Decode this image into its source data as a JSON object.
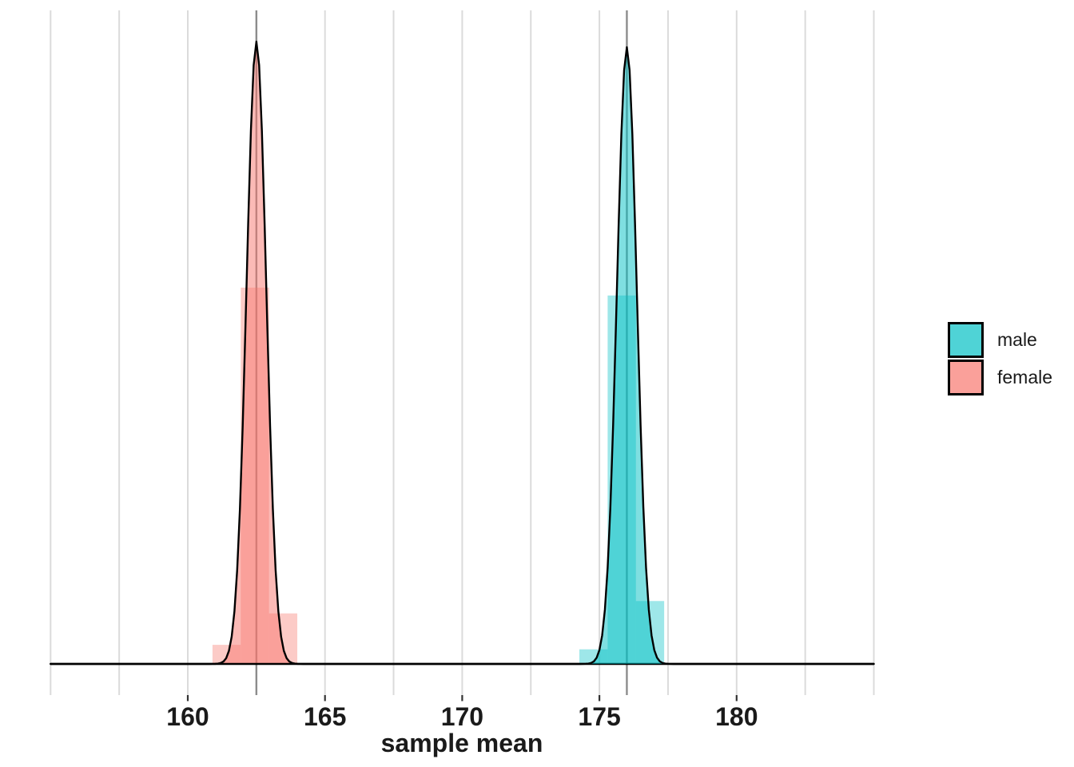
{
  "chart_data": {
    "type": "area",
    "subtype": "density-curves-with-histograms",
    "title": "",
    "xlabel": "sample mean",
    "ylabel": "",
    "xlim": [
      153.5,
      186.5
    ],
    "ylim": [
      -0.056,
      1.163
    ],
    "grid": "vertical-only",
    "legend_position": "right",
    "x_ticks": [
      {
        "value": 160,
        "label": "160"
      },
      {
        "value": 165,
        "label": "165"
      },
      {
        "value": 170,
        "label": "170"
      },
      {
        "value": 175,
        "label": "175"
      },
      {
        "value": 180,
        "label": "180"
      }
    ],
    "x_gridlines": [
      155,
      157.5,
      160,
      162.5,
      165,
      167.5,
      170,
      172.5,
      175,
      177.5,
      180,
      182.5,
      185
    ],
    "series": [
      {
        "name": "female",
        "fill": "#F8766D",
        "mean": 162.5,
        "sd": 0.36,
        "peak_density": 1.108,
        "mean_line": 162.5,
        "curve_range": [
          155,
          185
        ],
        "histogram_bins": [
          {
            "x0": 160.9,
            "x1": 161.93,
            "density": 0.034
          },
          {
            "x0": 161.93,
            "x1": 162.96,
            "density": 0.67
          },
          {
            "x0": 162.96,
            "x1": 163.99,
            "density": 0.09
          }
        ]
      },
      {
        "name": "male",
        "fill": "#00BFC4",
        "mean": 176.0,
        "sd": 0.363,
        "peak_density": 1.098,
        "mean_line": 176.0,
        "curve_range": [
          155,
          185
        ],
        "histogram_bins": [
          {
            "x0": 174.27,
            "x1": 175.3,
            "density": 0.026
          },
          {
            "x0": 175.3,
            "x1": 176.33,
            "density": 0.656
          },
          {
            "x0": 176.33,
            "x1": 177.36,
            "density": 0.112
          }
        ]
      }
    ]
  },
  "legend": {
    "items": [
      {
        "label": "male",
        "color": "#00BFC4"
      },
      {
        "label": "female",
        "color": "#F8766D"
      }
    ]
  },
  "style": {
    "background": "#FFFFFF",
    "gridline_color": "#DBDBDB",
    "mean_line_color": "#8C8C8C",
    "curve_stroke": "#000000",
    "tick_color": "#333333",
    "text_color": "#1A1A1A",
    "bar_opacity": 0.38,
    "curve_fill_opacity": 0.5,
    "legend_key_opacity": 0.69
  }
}
